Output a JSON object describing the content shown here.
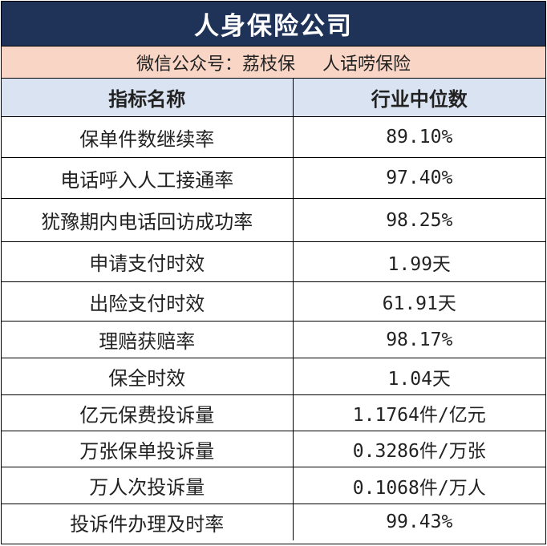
{
  "title": "人身保险公司",
  "subtitle": {
    "part1": "微信公众号：荔枝保",
    "part2": "人话唠保险"
  },
  "table": {
    "headers": [
      "指标名称",
      "行业中位数"
    ],
    "rows": [
      {
        "name": "保单件数继续率",
        "value": "89.10%"
      },
      {
        "name": "电话呼入人工接通率",
        "value": "97.40%"
      },
      {
        "name": "犹豫期内电话回访成功率",
        "value": "98.25%"
      },
      {
        "name": "申请支付时效",
        "value": "1.99天"
      },
      {
        "name": "出险支付时效",
        "value": "61.91天"
      },
      {
        "name": "理赔获赔率",
        "value": "98.17%"
      },
      {
        "name": "保全时效",
        "value": "1.04天"
      },
      {
        "name": "亿元保费投诉量",
        "value": "1.1764件/亿元"
      },
      {
        "name": "万张保单投诉量",
        "value": "0.3286件/万张"
      },
      {
        "name": "万人次投诉量",
        "value": "0.1068件/万人"
      },
      {
        "name": "投诉件办理及时率",
        "value": "99.43%"
      }
    ]
  }
}
